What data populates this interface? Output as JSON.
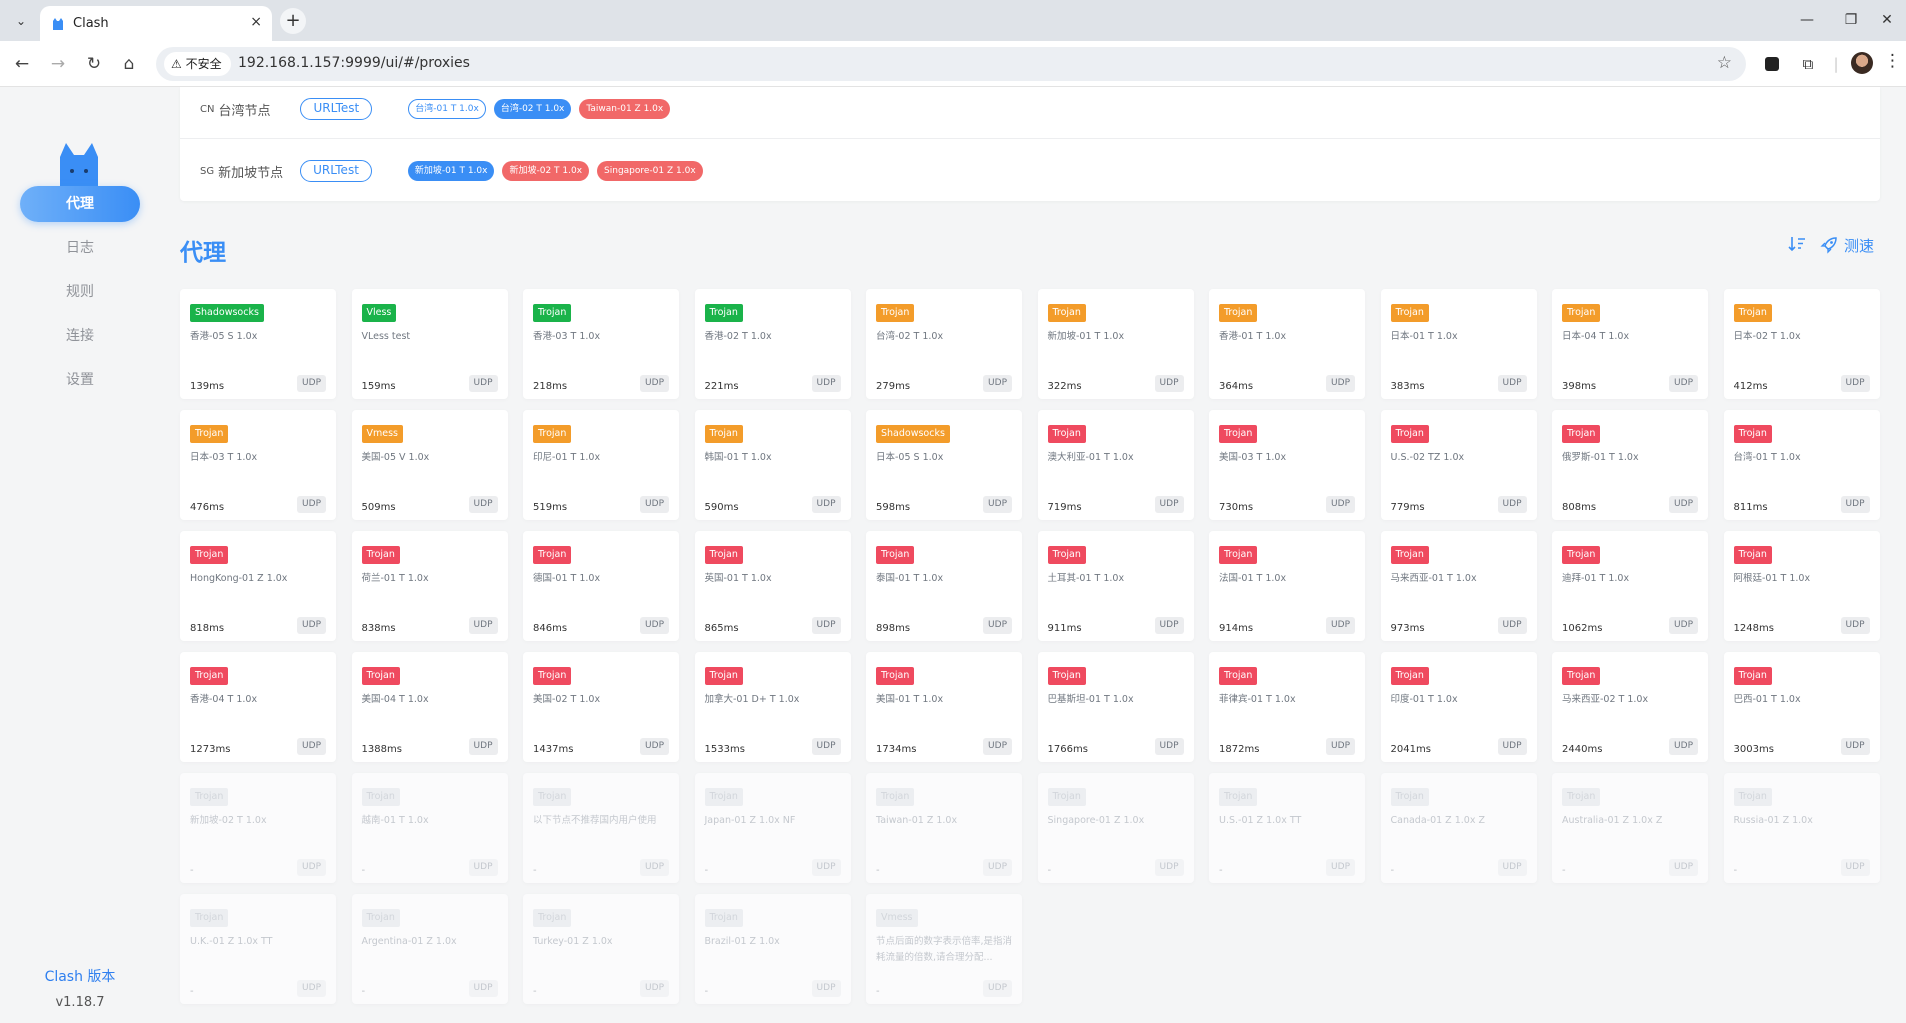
{
  "browser": {
    "tab_title": "Clash",
    "tab_close": "×",
    "new_tab": "+",
    "security_label": "不安全",
    "url": "192.168.1.157:9999/ui/#/proxies"
  },
  "sidebar": {
    "items": [
      {
        "label": "代理",
        "active": true
      },
      {
        "label": "日志",
        "active": false
      },
      {
        "label": "规则",
        "active": false
      },
      {
        "label": "连接",
        "active": false
      },
      {
        "label": "设置",
        "active": false
      }
    ],
    "version_title": "Clash 版本",
    "version": "v1.18.7"
  },
  "groups": [
    {
      "tag": "CN",
      "name": "台湾节点",
      "type": "URLTest",
      "proxies": [
        {
          "label": "台湾-01 T 1.0x",
          "style": "outline"
        },
        {
          "label": "台湾-02 T 1.0x",
          "style": "blue"
        },
        {
          "label": "Taiwan-01 Z 1.0x",
          "style": "red"
        }
      ]
    },
    {
      "tag": "SG",
      "name": "新加坡节点",
      "type": "URLTest",
      "proxies": [
        {
          "label": "新加坡-01 T 1.0x",
          "style": "blue"
        },
        {
          "label": "新加坡-02 T 1.0x",
          "style": "red"
        },
        {
          "label": "Singapore-01 Z 1.0x",
          "style": "red"
        }
      ]
    }
  ],
  "section_title": "代理",
  "speed_test_label": "测速",
  "colors": {
    "accent": "#3a8ef5",
    "green": "#1ab34a",
    "orange": "#f39c2a",
    "red": "#ef4a5f"
  },
  "udp_label": "UDP",
  "proxies": [
    {
      "type": "Shadowsocks",
      "name": "香港-05 S 1.0x",
      "delay": "139ms",
      "color": "green"
    },
    {
      "type": "Vless",
      "name": "VLess test",
      "delay": "159ms",
      "color": "green"
    },
    {
      "type": "Trojan",
      "name": "香港-03 T 1.0x",
      "delay": "218ms",
      "color": "green"
    },
    {
      "type": "Trojan",
      "name": "香港-02 T 1.0x",
      "delay": "221ms",
      "color": "green"
    },
    {
      "type": "Trojan",
      "name": "台湾-02 T 1.0x",
      "delay": "279ms",
      "color": "orange"
    },
    {
      "type": "Trojan",
      "name": "新加坡-01 T 1.0x",
      "delay": "322ms",
      "color": "orange"
    },
    {
      "type": "Trojan",
      "name": "香港-01 T 1.0x",
      "delay": "364ms",
      "color": "orange"
    },
    {
      "type": "Trojan",
      "name": "日本-01 T 1.0x",
      "delay": "383ms",
      "color": "orange"
    },
    {
      "type": "Trojan",
      "name": "日本-04 T 1.0x",
      "delay": "398ms",
      "color": "orange"
    },
    {
      "type": "Trojan",
      "name": "日本-02 T 1.0x",
      "delay": "412ms",
      "color": "orange"
    },
    {
      "type": "Trojan",
      "name": "日本-03 T 1.0x",
      "delay": "476ms",
      "color": "orange"
    },
    {
      "type": "Vmess",
      "name": "美国-05 V 1.0x",
      "delay": "509ms",
      "color": "orange"
    },
    {
      "type": "Trojan",
      "name": "印尼-01 T 1.0x",
      "delay": "519ms",
      "color": "orange"
    },
    {
      "type": "Trojan",
      "name": "韩国-01 T 1.0x",
      "delay": "590ms",
      "color": "orange"
    },
    {
      "type": "Shadowsocks",
      "name": "日本-05 S 1.0x",
      "delay": "598ms",
      "color": "orange"
    },
    {
      "type": "Trojan",
      "name": "澳大利亚-01 T 1.0x",
      "delay": "719ms",
      "color": "red"
    },
    {
      "type": "Trojan",
      "name": "美国-03 T 1.0x",
      "delay": "730ms",
      "color": "red"
    },
    {
      "type": "Trojan",
      "name": "U.S.-02 TZ 1.0x",
      "delay": "779ms",
      "color": "red"
    },
    {
      "type": "Trojan",
      "name": "俄罗斯-01 T 1.0x",
      "delay": "808ms",
      "color": "red"
    },
    {
      "type": "Trojan",
      "name": "台湾-01 T 1.0x",
      "delay": "811ms",
      "color": "red"
    },
    {
      "type": "Trojan",
      "name": "HongKong-01 Z 1.0x",
      "delay": "818ms",
      "color": "red"
    },
    {
      "type": "Trojan",
      "name": "荷兰-01 T 1.0x",
      "delay": "838ms",
      "color": "red"
    },
    {
      "type": "Trojan",
      "name": "德国-01 T 1.0x",
      "delay": "846ms",
      "color": "red"
    },
    {
      "type": "Trojan",
      "name": "英国-01 T 1.0x",
      "delay": "865ms",
      "color": "red"
    },
    {
      "type": "Trojan",
      "name": "泰国-01 T 1.0x",
      "delay": "898ms",
      "color": "red"
    },
    {
      "type": "Trojan",
      "name": "土耳其-01 T 1.0x",
      "delay": "911ms",
      "color": "red"
    },
    {
      "type": "Trojan",
      "name": "法国-01 T 1.0x",
      "delay": "914ms",
      "color": "red"
    },
    {
      "type": "Trojan",
      "name": "马来西亚-01 T 1.0x",
      "delay": "973ms",
      "color": "red"
    },
    {
      "type": "Trojan",
      "name": "迪拜-01 T 1.0x",
      "delay": "1062ms",
      "color": "red"
    },
    {
      "type": "Trojan",
      "name": "阿根廷-01 T 1.0x",
      "delay": "1248ms",
      "color": "red"
    },
    {
      "type": "Trojan",
      "name": "香港-04 T 1.0x",
      "delay": "1273ms",
      "color": "red"
    },
    {
      "type": "Trojan",
      "name": "美国-04 T 1.0x",
      "delay": "1388ms",
      "color": "red"
    },
    {
      "type": "Trojan",
      "name": "美国-02 T 1.0x",
      "delay": "1437ms",
      "color": "red"
    },
    {
      "type": "Trojan",
      "name": "加拿大-01 D+ T 1.0x",
      "delay": "1533ms",
      "color": "red"
    },
    {
      "type": "Trojan",
      "name": "美国-01 T 1.0x",
      "delay": "1734ms",
      "color": "red"
    },
    {
      "type": "Trojan",
      "name": "巴基斯坦-01 T 1.0x",
      "delay": "1766ms",
      "color": "red"
    },
    {
      "type": "Trojan",
      "name": "菲律宾-01 T 1.0x",
      "delay": "1872ms",
      "color": "red"
    },
    {
      "type": "Trojan",
      "name": "印度-01 T 1.0x",
      "delay": "2041ms",
      "color": "red"
    },
    {
      "type": "Trojan",
      "name": "马来西亚-02 T 1.0x",
      "delay": "2440ms",
      "color": "red"
    },
    {
      "type": "Trojan",
      "name": "巴西-01 T 1.0x",
      "delay": "3003ms",
      "color": "red"
    },
    {
      "type": "Trojan",
      "name": "新加坡-02 T 1.0x",
      "delay": "-",
      "color": "faded"
    },
    {
      "type": "Trojan",
      "name": "越南-01 T 1.0x",
      "delay": "-",
      "color": "faded"
    },
    {
      "type": "Trojan",
      "name": "以下节点不推荐国内用户使用",
      "delay": "-",
      "color": "faded"
    },
    {
      "type": "Trojan",
      "name": "Japan-01 Z 1.0x NF",
      "delay": "-",
      "color": "faded"
    },
    {
      "type": "Trojan",
      "name": "Taiwan-01 Z 1.0x",
      "delay": "-",
      "color": "faded"
    },
    {
      "type": "Trojan",
      "name": "Singapore-01 Z 1.0x",
      "delay": "-",
      "color": "faded"
    },
    {
      "type": "Trojan",
      "name": "U.S.-01 Z 1.0x TT",
      "delay": "-",
      "color": "faded"
    },
    {
      "type": "Trojan",
      "name": "Canada-01 Z 1.0x Z",
      "delay": "-",
      "color": "faded"
    },
    {
      "type": "Trojan",
      "name": "Australia-01 Z 1.0x Z",
      "delay": "-",
      "color": "faded"
    },
    {
      "type": "Trojan",
      "name": "Russia-01 Z 1.0x",
      "delay": "-",
      "color": "faded"
    },
    {
      "type": "Trojan",
      "name": "U.K.-01 Z 1.0x TT",
      "delay": "-",
      "color": "faded"
    },
    {
      "type": "Trojan",
      "name": "Argentina-01 Z 1.0x",
      "delay": "-",
      "color": "faded"
    },
    {
      "type": "Trojan",
      "name": "Turkey-01 Z 1.0x",
      "delay": "-",
      "color": "faded"
    },
    {
      "type": "Trojan",
      "name": "Brazil-01 Z 1.0x",
      "delay": "-",
      "color": "faded"
    },
    {
      "type": "Vmess",
      "name": "节点后面的数字表示倍率,是指消耗流量的倍数,请合理分配...",
      "delay": "-",
      "color": "faded"
    }
  ]
}
